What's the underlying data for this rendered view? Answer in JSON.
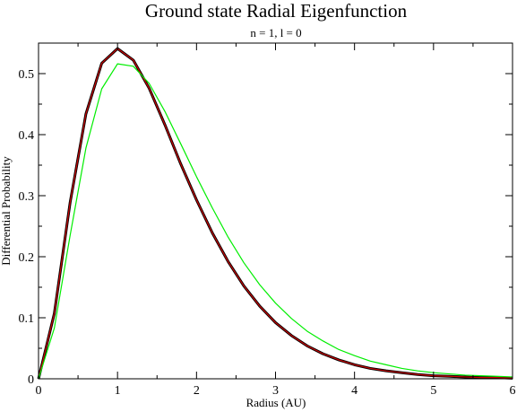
{
  "chart_data": {
    "type": "line",
    "title": "Ground state Radial Eigenfunction",
    "subtitle": "n = 1, l = 0",
    "xlabel": "Radius (AU)",
    "ylabel": "Differential Probability",
    "xlim": [
      0,
      6
    ],
    "ylim": [
      0,
      0.55
    ],
    "x_ticks": [
      0,
      1,
      2,
      3,
      4,
      5,
      6
    ],
    "y_ticks": [
      0,
      0.1,
      0.2,
      0.3,
      0.4,
      0.5
    ],
    "x_tick_labels": [
      "0",
      "1",
      "2",
      "3",
      "4",
      "5",
      "6"
    ],
    "y_tick_labels": [
      "0",
      "0.1",
      "0.2",
      "0.3",
      "0.4",
      "0.5"
    ],
    "grid": false,
    "legend": "none",
    "series": [
      {
        "color": "#000000",
        "x": [
          0,
          0.2,
          0.4,
          0.6,
          0.8,
          1.0,
          1.2,
          1.4,
          1.6,
          1.8,
          2.0,
          2.2,
          2.4,
          2.6,
          2.8,
          3.0,
          3.2,
          3.4,
          3.6,
          3.8,
          4.0,
          4.2,
          4.4,
          4.6,
          4.8,
          5.0,
          5.2,
          5.4,
          5.6,
          5.8,
          6.0
        ],
        "y": [
          0,
          0.107,
          0.289,
          0.434,
          0.517,
          0.541,
          0.522,
          0.476,
          0.416,
          0.352,
          0.293,
          0.239,
          0.192,
          0.152,
          0.119,
          0.092,
          0.071,
          0.054,
          0.041,
          0.031,
          0.023,
          0.017,
          0.013,
          0.01,
          0.007,
          0.005,
          0.004,
          0.003,
          0.002,
          0.002,
          0.001
        ]
      },
      {
        "color": "#cc0000",
        "x": [
          0,
          0.2,
          0.4,
          0.6,
          0.8,
          1.0,
          1.2,
          1.4,
          1.6,
          1.8,
          2.0,
          2.2,
          2.4,
          2.6,
          2.8,
          3.0,
          3.2,
          3.4,
          3.6,
          3.8,
          4.0,
          4.2,
          4.4,
          4.6,
          4.8,
          5.0,
          5.2,
          5.4,
          5.6,
          5.8,
          6.0
        ],
        "y": [
          0,
          0.107,
          0.289,
          0.434,
          0.517,
          0.541,
          0.522,
          0.476,
          0.416,
          0.352,
          0.293,
          0.239,
          0.192,
          0.152,
          0.119,
          0.092,
          0.071,
          0.054,
          0.041,
          0.031,
          0.023,
          0.017,
          0.013,
          0.01,
          0.007,
          0.005,
          0.004,
          0.003,
          0.002,
          0.002,
          0.001
        ]
      },
      {
        "color": "#00ee00",
        "x": [
          0,
          0.2,
          0.4,
          0.6,
          0.8,
          1.0,
          1.2,
          1.4,
          1.6,
          1.8,
          2.0,
          2.2,
          2.4,
          2.6,
          2.8,
          3.0,
          3.2,
          3.4,
          3.6,
          3.8,
          4.0,
          4.2,
          4.4,
          4.6,
          4.8,
          5.0,
          5.2,
          5.4,
          5.6,
          5.8,
          6.0
        ],
        "y": [
          0,
          0.083,
          0.235,
          0.378,
          0.475,
          0.516,
          0.512,
          0.484,
          0.438,
          0.385,
          0.331,
          0.28,
          0.232,
          0.19,
          0.154,
          0.124,
          0.099,
          0.078,
          0.062,
          0.048,
          0.038,
          0.029,
          0.023,
          0.017,
          0.013,
          0.01,
          0.008,
          0.006,
          0.005,
          0.004,
          0.003
        ]
      }
    ]
  }
}
